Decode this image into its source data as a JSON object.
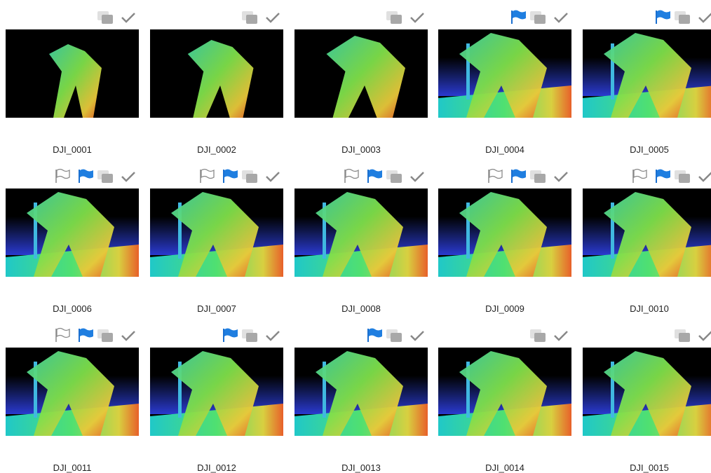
{
  "tiles": [
    {
      "name": "DJI_0001",
      "outline_flag": false,
      "blue_flag": false
    },
    {
      "name": "DJI_0002",
      "outline_flag": false,
      "blue_flag": false
    },
    {
      "name": "DJI_0003",
      "outline_flag": false,
      "blue_flag": false
    },
    {
      "name": "DJI_0004",
      "outline_flag": false,
      "blue_flag": true
    },
    {
      "name": "DJI_0005",
      "outline_flag": false,
      "blue_flag": true
    },
    {
      "name": "DJI_0006",
      "outline_flag": true,
      "blue_flag": true
    },
    {
      "name": "DJI_0007",
      "outline_flag": true,
      "blue_flag": true
    },
    {
      "name": "DJI_0008",
      "outline_flag": true,
      "blue_flag": true
    },
    {
      "name": "DJI_0009",
      "outline_flag": true,
      "blue_flag": true
    },
    {
      "name": "DJI_0010",
      "outline_flag": true,
      "blue_flag": true
    },
    {
      "name": "DJI_0011",
      "outline_flag": true,
      "blue_flag": true
    },
    {
      "name": "DJI_0012",
      "outline_flag": false,
      "blue_flag": true
    },
    {
      "name": "DJI_0013",
      "outline_flag": false,
      "blue_flag": true
    },
    {
      "name": "DJI_0014",
      "outline_flag": false,
      "blue_flag": false
    },
    {
      "name": "DJI_0015",
      "outline_flag": false,
      "blue_flag": false
    }
  ]
}
